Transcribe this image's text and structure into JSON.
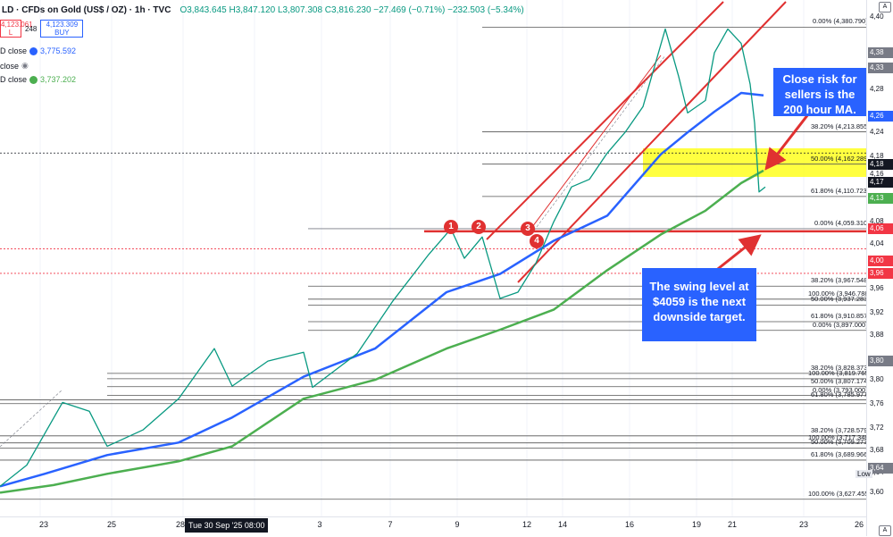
{
  "header": {
    "title": "LD · CFDs on Gold (US$ / OZ) · 1h · TVC",
    "ohlc": "O3,843.645 H3,847.120 L3,807.308 C3,816.230 −27.469 (−0.71%) −232.503 (−5.34%)",
    "sell_price": "4,123.061",
    "sell_label": "L",
    "spread": "248",
    "buy_price": "4,123.309",
    "buy_label": "BUY"
  },
  "indicators": [
    {
      "label": "D close",
      "value": "3,775.592",
      "color": "#2962ff"
    },
    {
      "label": "close",
      "value": "",
      "color": "#787b86"
    },
    {
      "label": "D close",
      "value": "3,737.202",
      "color": "#4caf50"
    }
  ],
  "notes": {
    "top_right": "Close risk for sellers is the 200 hour MA.",
    "bottom": "The swing level at $4059 is the next downside target."
  },
  "markers": [
    "1",
    "2",
    "3",
    "4"
  ],
  "x_axis": {
    "labels": [
      "23",
      "25",
      "28",
      "Tue 30 Sep '25   08:00",
      "3",
      "7",
      "9",
      "12",
      "14",
      "16",
      "19",
      "21",
      "23",
      "26"
    ],
    "highlight": "Tue 30 Sep '25   08:00"
  },
  "y_axis": {
    "ticks": [
      "4,40",
      "4,38",
      "4,32",
      "4,28",
      "4,24",
      "4,18",
      "4,16",
      "4,12",
      "4,08",
      "4,04",
      "4,00",
      "3,96",
      "3,92",
      "3,88",
      "3,84",
      "3,80",
      "3,76",
      "3,72",
      "3,68",
      "3,64",
      "3,60"
    ],
    "price_tags": [
      {
        "text": "4,38",
        "color": "#787b86"
      },
      {
        "text": "4,33",
        "color": "#787b86"
      },
      {
        "text": "4,26",
        "color": "#2962ff"
      },
      {
        "text": "4,18",
        "color": "#131722"
      },
      {
        "text": "4,17",
        "color": "#131722"
      },
      {
        "text": "4,13",
        "color": "#4caf50"
      },
      {
        "text": "4,06",
        "color": "#f23645"
      },
      {
        "text": "4,00",
        "color": "#f23645"
      },
      {
        "text": "3,96",
        "color": "#f23645"
      },
      {
        "text": "3,80",
        "color": "#787b86"
      },
      {
        "text": "3,64",
        "color": "#787b86"
      }
    ],
    "low_label": "Low"
  },
  "fib_labels": [
    "0.00% (4,380.790)",
    "38.20% (4,213.855)",
    "50.00% (4,162.289)",
    "61.80% (4,110.723)",
    "0.00% (4,059.310)",
    "38.20% (3,967.548)",
    "100.00% (3,946.788)",
    "50.00% (3,937.283)",
    "61.80% (3,910.857)",
    "0.00% (3,897.000)",
    "38.20% (3,828.373)",
    "100.00% (3,819.765)",
    "50.00% (3,807.174)",
    "0.00% (3,793.000)",
    "61.80% (3,785.977)",
    "38.20% (3,728.579)",
    "100.00% (3,717.348)",
    "50.00% (3,709.273)",
    "61.80% (3,689.966)",
    "100.00% (3,627.455)"
  ],
  "corner": {
    "top": "A",
    "bottom": "A"
  },
  "chart_data": {
    "type": "line",
    "title": "CFDs on Gold (US$ / OZ) · 1h · TVC",
    "y_range": [
      3600,
      4410
    ],
    "x_range": [
      0,
      970
    ],
    "key_levels": {
      "swing_level": 4059.31,
      "fib_38_2": 4213.855,
      "fib_50": 4162.289,
      "fib_61_8": 4110.723,
      "high": 4380.79
    },
    "series": [
      {
        "color": "#2962ff",
        "x": [
          0,
          50,
          120,
          200,
          260,
          340,
          420,
          500,
          560,
          620,
          680,
          740,
          770,
          800,
          830,
          855
        ],
        "values": [
          3648,
          3668,
          3698,
          3718,
          3758,
          3823,
          3868,
          3958,
          3987,
          4040,
          4080,
          4178,
          4213,
          4246,
          4276,
          4272
        ]
      },
      {
        "color": "#4caf50",
        "x": [
          0,
          60,
          120,
          200,
          260,
          340,
          420,
          500,
          560,
          620,
          680,
          740,
          790,
          830,
          855
        ],
        "values": [
          3638,
          3650,
          3668,
          3688,
          3712,
          3788,
          3818,
          3868,
          3898,
          3930,
          3993,
          4050,
          4088,
          4132,
          4152
        ]
      },
      {
        "color": "#089981",
        "x": [
          0,
          30,
          70,
          100,
          120,
          160,
          200,
          240,
          260,
          300,
          340,
          350,
          400,
          440,
          480,
          505,
          520,
          540,
          560,
          580,
          600,
          620,
          640,
          660,
          680,
          700,
          720,
          745,
          760,
          770,
          790,
          800,
          815,
          830,
          840,
          845,
          850,
          857
        ],
        "values": [
          3648,
          3682,
          3782,
          3768,
          3712,
          3738,
          3788,
          3868,
          3808,
          3848,
          3862,
          3806,
          3860,
          3944,
          4018,
          4059,
          4012,
          4046,
          3948,
          3958,
          4004,
          4070,
          4126,
          4138,
          4180,
          4213,
          4254,
          4378,
          4302,
          4244,
          4264,
          4340,
          4378,
          4355,
          4290,
          4228,
          4118,
          4126
        ]
      }
    ]
  }
}
